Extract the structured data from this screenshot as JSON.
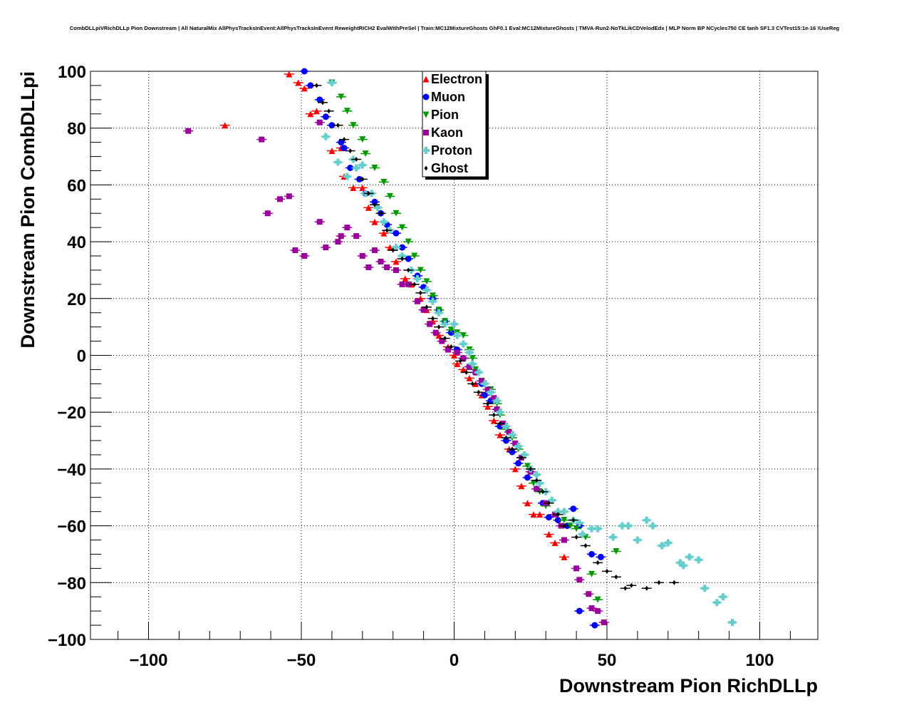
{
  "chart_data": {
    "type": "scatter",
    "title": "CombDLLpiVRichDLLp Pion Downstream | All NaturalMix AllPhysTracksInEvent:AllPhysTracksInEvent ReweightRICH2 EvalWithPreSel | Train:MC12MixtureGhosts GhF0.1 Eval:MC12MixtureGhosts | TMVA-Run2-NoTkLikCDVelodEdx | MLP Norm BP NCycles750 CE tanh SF1.3 CVTest15:1e-16 !UseReg",
    "xlabel": "Downstream Pion RichDLLp",
    "ylabel": "Downstream Pion CombDLLpi",
    "xlim": [
      -119,
      119
    ],
    "ylim": [
      -100,
      100
    ],
    "xticks": [
      -100,
      -50,
      0,
      50,
      100
    ],
    "xtick_labels": [
      "−100",
      "−50",
      "0",
      "50",
      "100"
    ],
    "yticks": [
      -100,
      -80,
      -60,
      -40,
      -20,
      0,
      20,
      40,
      60,
      80,
      100
    ],
    "ytick_labels": [
      "−100",
      "−80",
      "−60",
      "−40",
      "−20",
      "0",
      "20",
      "40",
      "60",
      "80",
      "100"
    ],
    "grid": true,
    "legend_position": "top-center",
    "series": [
      {
        "name": "Electron",
        "color": "#ff0000",
        "marker": "triangle-up",
        "points": [
          [
            -75,
            81
          ],
          [
            -54,
            99
          ],
          [
            -51,
            96
          ],
          [
            -49,
            94
          ],
          [
            -47,
            85
          ],
          [
            -45,
            86
          ],
          [
            -40,
            72
          ],
          [
            -37,
            73
          ],
          [
            -36,
            63
          ],
          [
            -33,
            59
          ],
          [
            -30,
            59
          ],
          [
            -28,
            52
          ],
          [
            -26,
            47
          ],
          [
            -23,
            43
          ],
          [
            -21,
            38
          ],
          [
            -19,
            33
          ],
          [
            -16,
            27
          ],
          [
            -14,
            25
          ],
          [
            -11,
            20
          ],
          [
            -9,
            16
          ],
          [
            -7,
            12
          ],
          [
            -5,
            7
          ],
          [
            -2,
            3
          ],
          [
            0,
            0
          ],
          [
            1,
            -3
          ],
          [
            3,
            -5
          ],
          [
            5,
            -8
          ],
          [
            7,
            -10
          ],
          [
            9,
            -14
          ],
          [
            11,
            -18
          ],
          [
            13,
            -23
          ],
          [
            15,
            -28
          ],
          [
            18,
            -33
          ],
          [
            20,
            -40
          ],
          [
            22,
            -46
          ],
          [
            24,
            -52
          ],
          [
            26,
            -56
          ],
          [
            28,
            -56
          ],
          [
            31,
            -63
          ],
          [
            33,
            -66
          ],
          [
            36,
            -71
          ]
        ]
      },
      {
        "name": "Muon",
        "color": "#0000ff",
        "marker": "circle",
        "points": [
          [
            -49,
            100
          ],
          [
            -47,
            95
          ],
          [
            -44,
            90
          ],
          [
            -42,
            84
          ],
          [
            -40,
            81
          ],
          [
            -37,
            75
          ],
          [
            -36,
            73
          ],
          [
            -34,
            66
          ],
          [
            -31,
            62
          ],
          [
            -29,
            57
          ],
          [
            -26,
            54
          ],
          [
            -24,
            50
          ],
          [
            -22,
            46
          ],
          [
            -19,
            43
          ],
          [
            -17,
            38
          ],
          [
            -15,
            34
          ],
          [
            -12,
            28
          ],
          [
            -10,
            24
          ],
          [
            -7,
            20
          ],
          [
            -5,
            16
          ],
          [
            -3,
            12
          ],
          [
            -1,
            8
          ],
          [
            1,
            2
          ],
          [
            3,
            -1
          ],
          [
            5,
            -4
          ],
          [
            7,
            -6
          ],
          [
            9,
            -10
          ],
          [
            10,
            -14
          ],
          [
            12,
            -16
          ],
          [
            14,
            -19
          ],
          [
            15,
            -25
          ],
          [
            17,
            -30
          ],
          [
            19,
            -34
          ],
          [
            21,
            -38
          ],
          [
            24,
            -43
          ],
          [
            27,
            -47
          ],
          [
            29,
            -52
          ],
          [
            31,
            -57
          ],
          [
            34,
            -58
          ],
          [
            37,
            -60
          ],
          [
            39,
            -54
          ],
          [
            41,
            -60
          ],
          [
            45,
            -70
          ],
          [
            48,
            -71
          ],
          [
            41,
            -90
          ],
          [
            46,
            -95
          ]
        ]
      },
      {
        "name": "Pion",
        "color": "#009900",
        "marker": "triangle-down",
        "points": [
          [
            -40,
            96
          ],
          [
            -37,
            91
          ],
          [
            -35,
            86
          ],
          [
            -33,
            81
          ],
          [
            -30,
            76
          ],
          [
            -29,
            71
          ],
          [
            -26,
            66
          ],
          [
            -23,
            61
          ],
          [
            -21,
            56
          ],
          [
            -19,
            50
          ],
          [
            -17,
            45
          ],
          [
            -15,
            40
          ],
          [
            -13,
            35
          ],
          [
            -11,
            30
          ],
          [
            -9,
            26
          ],
          [
            -7,
            21
          ],
          [
            -5,
            16
          ],
          [
            -3,
            12
          ],
          [
            -1,
            9
          ],
          [
            1,
            8
          ],
          [
            3,
            7
          ],
          [
            5,
            2
          ],
          [
            6,
            -1
          ],
          [
            7,
            -5
          ],
          [
            9,
            -9
          ],
          [
            12,
            -12
          ],
          [
            14,
            -17
          ],
          [
            15,
            -21
          ],
          [
            17,
            -26
          ],
          [
            19,
            -29
          ],
          [
            21,
            -33
          ],
          [
            24,
            -39
          ],
          [
            26,
            -45
          ],
          [
            28,
            -48
          ],
          [
            30,
            -53
          ],
          [
            34,
            -56
          ],
          [
            36,
            -58
          ],
          [
            38,
            -60
          ],
          [
            40,
            -61
          ],
          [
            43,
            -64
          ],
          [
            45,
            -77
          ],
          [
            47,
            -86
          ],
          [
            53,
            -69
          ]
        ]
      },
      {
        "name": "Kaon",
        "color": "#990099",
        "marker": "square",
        "points": [
          [
            -87,
            79
          ],
          [
            -63,
            76
          ],
          [
            -61,
            50
          ],
          [
            -57,
            55
          ],
          [
            -54,
            56
          ],
          [
            -52,
            37
          ],
          [
            -49,
            35
          ],
          [
            -44,
            82
          ],
          [
            -44,
            47
          ],
          [
            -42,
            38
          ],
          [
            -38,
            40
          ],
          [
            -37,
            42
          ],
          [
            -35,
            45
          ],
          [
            -32,
            42
          ],
          [
            -30,
            35
          ],
          [
            -28,
            31
          ],
          [
            -26,
            37
          ],
          [
            -24,
            33
          ],
          [
            -22,
            31
          ],
          [
            -19,
            30
          ],
          [
            -17,
            25
          ],
          [
            -15,
            25
          ],
          [
            -12,
            19
          ],
          [
            -10,
            16
          ],
          [
            -8,
            11
          ],
          [
            -6,
            8
          ],
          [
            -4,
            5
          ],
          [
            -2,
            2
          ],
          [
            1,
            1
          ],
          [
            3,
            -1
          ],
          [
            5,
            -4
          ],
          [
            7,
            -6
          ],
          [
            9,
            -9
          ],
          [
            11,
            -12
          ],
          [
            13,
            -15
          ],
          [
            14,
            -19
          ],
          [
            16,
            -24
          ],
          [
            18,
            -27
          ],
          [
            20,
            -31
          ],
          [
            22,
            -36
          ],
          [
            25,
            -41
          ],
          [
            27,
            -47
          ],
          [
            30,
            -52
          ],
          [
            33,
            -56
          ],
          [
            35,
            -60
          ],
          [
            36,
            -65
          ],
          [
            40,
            -75
          ],
          [
            41,
            -79
          ],
          [
            44,
            -84
          ],
          [
            45,
            -89
          ],
          [
            47,
            -90
          ],
          [
            49,
            -94
          ]
        ]
      },
      {
        "name": "Proton",
        "color": "#66cccc",
        "marker": "cross",
        "points": [
          [
            -40,
            96
          ],
          [
            -42,
            77
          ],
          [
            -38,
            68
          ],
          [
            -35,
            63
          ],
          [
            -33,
            69
          ],
          [
            -32,
            66
          ],
          [
            -30,
            67
          ],
          [
            -29,
            57
          ],
          [
            -27,
            57
          ],
          [
            -25,
            52
          ],
          [
            -23,
            47
          ],
          [
            -21,
            44
          ],
          [
            -19,
            38
          ],
          [
            -17,
            35
          ],
          [
            -14,
            30
          ],
          [
            -12,
            27
          ],
          [
            -9,
            23
          ],
          [
            -7,
            19
          ],
          [
            -5,
            15
          ],
          [
            -3,
            11
          ],
          [
            0,
            11
          ],
          [
            1,
            7
          ],
          [
            3,
            4
          ],
          [
            5,
            1
          ],
          [
            6,
            -3
          ],
          [
            8,
            -6
          ],
          [
            10,
            -10
          ],
          [
            12,
            -13
          ],
          [
            14,
            -16
          ],
          [
            15,
            -20
          ],
          [
            17,
            -25
          ],
          [
            19,
            -28
          ],
          [
            21,
            -32
          ],
          [
            23,
            -35
          ],
          [
            25,
            -40
          ],
          [
            27,
            -42
          ],
          [
            28,
            -45
          ],
          [
            30,
            -48
          ],
          [
            32,
            -51
          ],
          [
            34,
            -55
          ],
          [
            36,
            -55
          ],
          [
            39,
            -58
          ],
          [
            41,
            -59
          ],
          [
            42,
            -63
          ],
          [
            45,
            -61
          ],
          [
            47,
            -61
          ],
          [
            52,
            -64
          ],
          [
            55,
            -60
          ],
          [
            57,
            -60
          ],
          [
            60,
            -65
          ],
          [
            63,
            -58
          ],
          [
            65,
            -60
          ],
          [
            68,
            -67
          ],
          [
            70,
            -66
          ],
          [
            74,
            -73
          ],
          [
            75,
            -74
          ],
          [
            77,
            -71
          ],
          [
            80,
            -72
          ],
          [
            82,
            -82
          ],
          [
            86,
            -87
          ],
          [
            88,
            -85
          ],
          [
            91,
            -94
          ]
        ]
      },
      {
        "name": "Ghost",
        "color": "#000000",
        "marker": "diamond",
        "points": [
          [
            -45,
            95
          ],
          [
            -43,
            89
          ],
          [
            -41,
            86
          ],
          [
            -38,
            81
          ],
          [
            -36,
            76
          ],
          [
            -34,
            72
          ],
          [
            -32,
            69
          ],
          [
            -30,
            62
          ],
          [
            -28,
            57
          ],
          [
            -26,
            53
          ],
          [
            -24,
            50
          ],
          [
            -22,
            44
          ],
          [
            -20,
            37
          ],
          [
            -17,
            34
          ],
          [
            -15,
            30
          ],
          [
            -13,
            25
          ],
          [
            -11,
            22
          ],
          [
            -9,
            17
          ],
          [
            -7,
            13
          ],
          [
            -5,
            10
          ],
          [
            -3,
            6
          ],
          [
            -1,
            3
          ],
          [
            2,
            -2
          ],
          [
            4,
            -6
          ],
          [
            6,
            -10
          ],
          [
            8,
            -13
          ],
          [
            11,
            -17
          ],
          [
            13,
            -21
          ],
          [
            15,
            -24
          ],
          [
            17,
            -29
          ],
          [
            19,
            -33
          ],
          [
            22,
            -36
          ],
          [
            25,
            -40
          ],
          [
            27,
            -44
          ],
          [
            29,
            -48
          ],
          [
            31,
            -52
          ],
          [
            34,
            -56
          ],
          [
            36,
            -60
          ],
          [
            39,
            -58
          ],
          [
            40,
            -64
          ],
          [
            43,
            -67
          ],
          [
            47,
            -73
          ],
          [
            50,
            -76
          ],
          [
            53,
            -78
          ],
          [
            56,
            -82
          ],
          [
            58,
            -81
          ],
          [
            63,
            -82
          ],
          [
            67,
            -80
          ],
          [
            72,
            -80
          ]
        ]
      }
    ]
  }
}
